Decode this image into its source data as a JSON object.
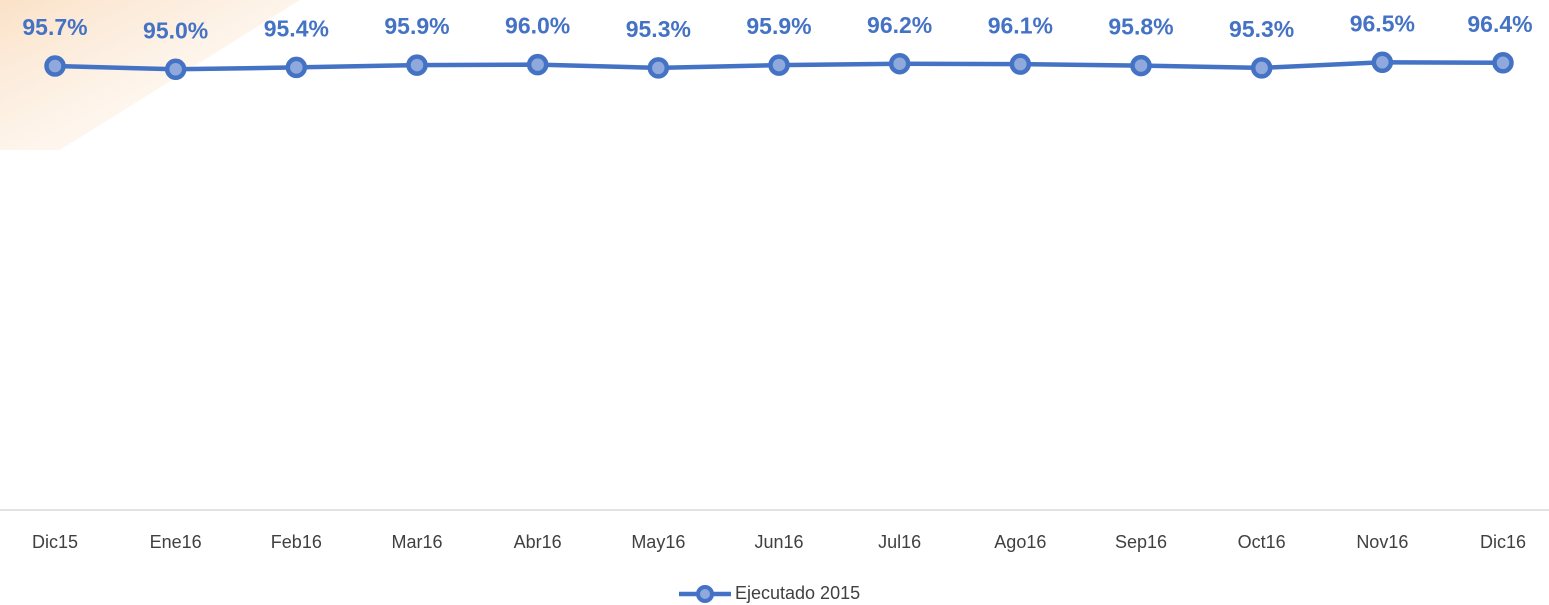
{
  "chart_data": {
    "type": "line",
    "categories": [
      "Dic15",
      "Ene16",
      "Feb16",
      "Mar16",
      "Abr16",
      "May16",
      "Jun16",
      "Jul16",
      "Ago16",
      "Sep16",
      "Oct16",
      "Nov16",
      "Dic16"
    ],
    "series": [
      {
        "name": "Ejecutado 2015",
        "color": "#4472c4",
        "values": [
          95.7,
          95.0,
          95.4,
          95.9,
          96.0,
          95.3,
          95.9,
          96.2,
          96.1,
          95.8,
          95.3,
          96.5,
          96.4
        ],
        "value_labels": [
          "95.7%",
          "95.0%",
          "95.4%",
          "95.9%",
          "96.0%",
          "95.3%",
          "95.9%",
          "96.2%",
          "96.1%",
          "95.8%",
          "95.3%",
          "96.5%",
          "96.4%"
        ]
      }
    ],
    "ylim": [
      0,
      100
    ],
    "legend": "bottom"
  }
}
